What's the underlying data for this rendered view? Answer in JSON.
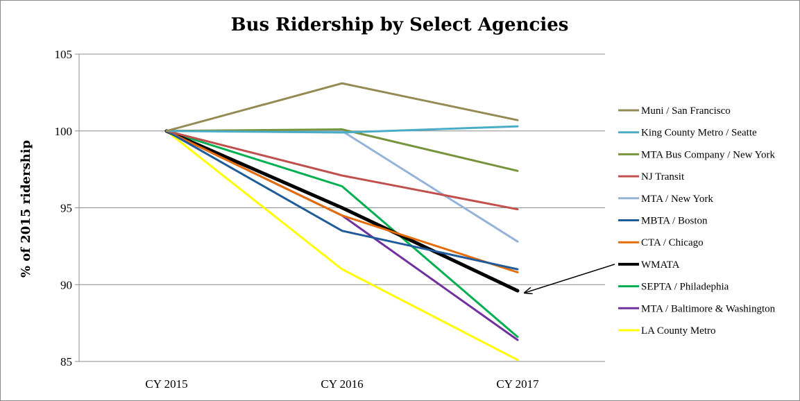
{
  "chart_data": {
    "type": "line",
    "title": "Bus Ridership by Select Agencies",
    "xlabel": "",
    "ylabel": "% of 2015 ridership",
    "categories": [
      "CY 2015",
      "CY 2016",
      "CY 2017"
    ],
    "ylim": [
      85,
      105
    ],
    "yticks": [
      85,
      90,
      95,
      100,
      105
    ],
    "grid": true,
    "legend_position": "right",
    "series": [
      {
        "name": "Muni / San Francisco",
        "color": "#948a54",
        "values": [
          100,
          103.1,
          100.7
        ]
      },
      {
        "name": "King County Metro / Seatte",
        "color": "#4bacc6",
        "values": [
          100,
          99.9,
          100.3
        ]
      },
      {
        "name": "MTA Bus Company / New York",
        "color": "#77933c",
        "values": [
          100,
          100.1,
          97.4
        ]
      },
      {
        "name": "NJ Transit",
        "color": "#c0504d",
        "values": [
          100,
          97.1,
          94.9
        ]
      },
      {
        "name": "MTA / New York",
        "color": "#95b3d7",
        "values": [
          100,
          100.0,
          92.8
        ]
      },
      {
        "name": "MBTA / Boston",
        "color": "#1f5c99",
        "values": [
          100,
          93.5,
          91.0
        ]
      },
      {
        "name": "CTA / Chicago",
        "color": "#e46c0a",
        "values": [
          100,
          94.5,
          90.8
        ]
      },
      {
        "name": "WMATA",
        "color": "#000000",
        "values": [
          100,
          95.0,
          89.6
        ]
      },
      {
        "name": "SEPTA / Philadephia",
        "color": "#00b050",
        "values": [
          100,
          96.4,
          86.6
        ]
      },
      {
        "name": "MTA / Baltimore & Washington",
        "color": "#7030a0",
        "values": [
          100,
          94.5,
          86.4
        ]
      },
      {
        "name": "LA County Metro",
        "color": "#ffff00",
        "values": [
          100,
          91.0,
          85.1
        ]
      }
    ],
    "annotation": {
      "type": "arrow",
      "points_to_series": "WMATA",
      "category": "CY 2017"
    }
  }
}
